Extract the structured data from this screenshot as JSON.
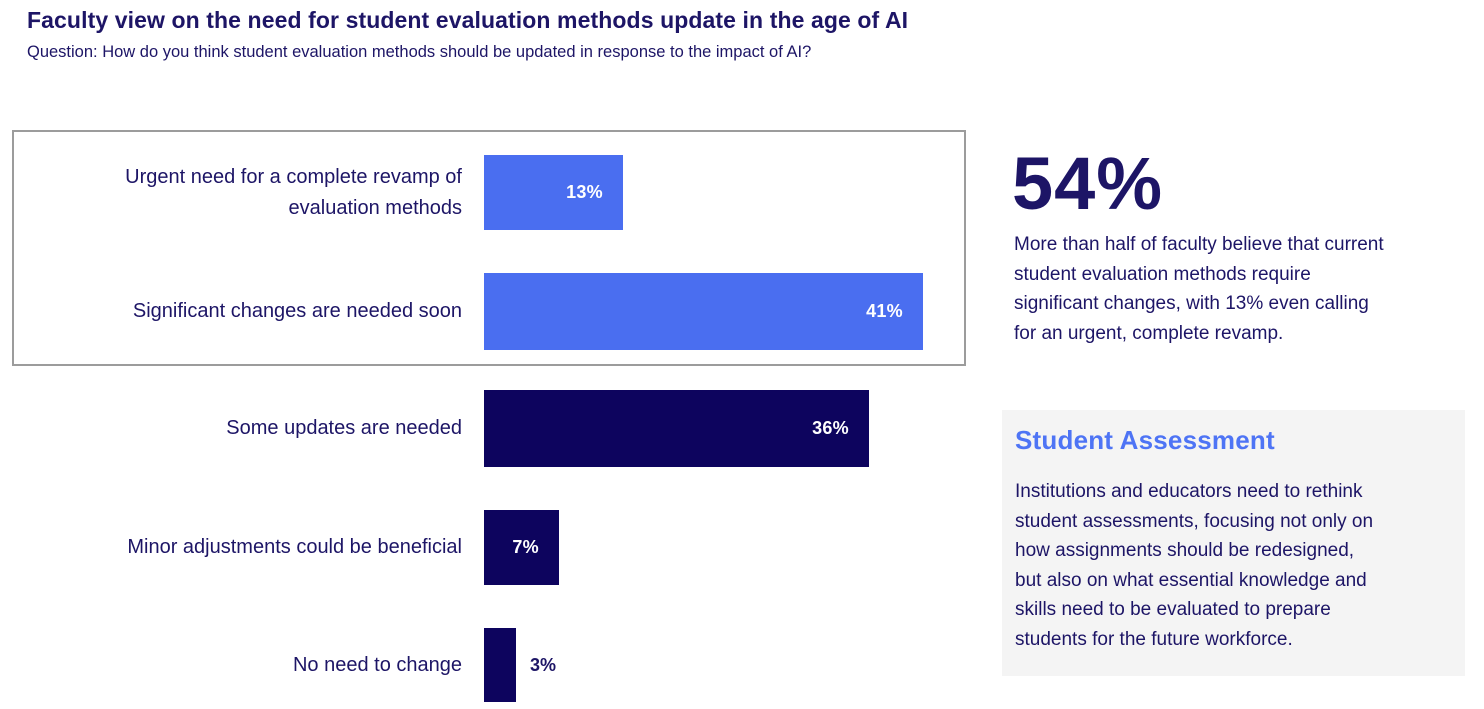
{
  "header": {
    "title": "Faculty view on the need for student evaluation methods update in the age of AI",
    "subtitle": "Question: How do you think student evaluation methods should be updated in response to the impact of AI?"
  },
  "chart_data": {
    "type": "bar",
    "orientation": "horizontal",
    "title": "",
    "xlabel": "",
    "ylabel": "",
    "axes_visible": false,
    "grid": false,
    "value_suffix": "%",
    "xlim": [
      0,
      45
    ],
    "categories": [
      "Urgent need for a complete revamp of\nevaluation methods",
      "Significant changes are needed soon",
      "Some updates are needed",
      "Minor adjustments could be beneficial",
      "No need to change"
    ],
    "values": [
      13,
      41,
      36,
      7,
      3
    ],
    "value_labels": [
      "13%",
      "41%",
      "36%",
      "7%",
      "3%"
    ],
    "value_label_inside": [
      true,
      true,
      true,
      true,
      false
    ],
    "bar_colors": [
      "#4A6EF0",
      "#4A6EF0",
      "#0D045E",
      "#0D045E",
      "#0D045E"
    ],
    "highlight_group": {
      "indices": [
        0,
        1
      ],
      "style": "gray-outlined-box",
      "combined_value": "54%"
    }
  },
  "insight": {
    "stat": "54%",
    "text": "More than half of faculty believe that current\nstudent evaluation methods require\nsignificant changes, with 13% even calling\nfor an urgent, complete revamp."
  },
  "callout": {
    "title": "Student Assessment",
    "body": "Institutions and educators need to rethink\nstudent assessments, focusing not only on\nhow assignments should be redesigned,\nbut also on what essential knowledge and\nskills need to be evaluated to prepare\nstudents for the future workforce."
  },
  "colors": {
    "navy": "#0D045E",
    "blue": "#4A6EF0",
    "text": "#1D1566",
    "heading-blue": "#4E74F5",
    "callout-bg": "#F4F4F4",
    "box-border": "#9C9C9C"
  }
}
